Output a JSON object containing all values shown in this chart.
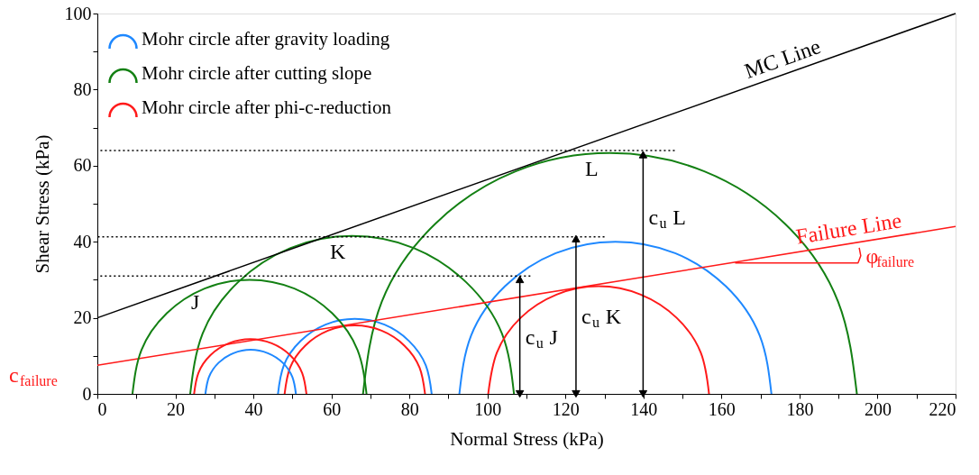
{
  "chart_data": {
    "type": "line",
    "xlabel": "Normal Stress (kPa)",
    "ylabel": "Shear Stress (kPa)",
    "xlim": [
      0,
      220
    ],
    "ylim": [
      0,
      100
    ],
    "xticks": [
      0,
      {
        "value": 10,
        "label": null
      },
      20,
      {
        "value": 30,
        "label": null
      },
      40,
      {
        "value": 50,
        "label": null
      },
      60,
      {
        "value": 70,
        "label": null
      },
      80,
      {
        "value": 90,
        "label": null
      },
      100,
      {
        "value": 110,
        "label": null
      },
      120,
      {
        "value": 130,
        "label": null
      },
      140,
      {
        "value": 150,
        "label": null
      },
      160,
      {
        "value": 170,
        "label": null
      },
      180,
      {
        "value": 190,
        "label": null
      },
      200,
      {
        "value": 210,
        "label": null
      },
      220
    ],
    "yticks": [
      0,
      {
        "value": 10,
        "label": null
      },
      20,
      {
        "value": 30,
        "label": null
      },
      40,
      {
        "value": 50,
        "label": null
      },
      60,
      {
        "value": 70,
        "label": null
      },
      80,
      {
        "value": 90,
        "label": null
      },
      100
    ],
    "grid": false,
    "legend": "top left",
    "series": [
      {
        "name": "Mohr circle after gravity loading",
        "color": "#1e88ff",
        "x": [
          27.7,
          28.6,
          31.1,
          34.9,
          39.3,
          43.7,
          47.5,
          50.0,
          50.9
        ],
        "values": [
          0,
          4.4,
          8.2,
          10.7,
          11.6,
          10.7,
          8.2,
          4.4,
          0
        ]
      },
      {
        "color": "#1e88ff",
        "x": [
          46.3,
          47.8,
          52.1,
          58.5,
          66,
          73.6,
          79.9,
          84.2,
          85.7
        ],
        "values": [
          0,
          7.5,
          13.9,
          18.2,
          19.7,
          18.2,
          13.9,
          7.5,
          0
        ]
      },
      {
        "color": "#1e88ff",
        "x": [
          92.8,
          95.8,
          104.5,
          117.5,
          132.8,
          148.1,
          161.1,
          169.8,
          172.8
        ],
        "values": [
          0,
          15.3,
          28.3,
          37,
          40,
          37,
          28.3,
          15.3,
          0
        ]
      },
      {
        "name": "Mohr circle after cutting slope",
        "color": "#138013",
        "x": [
          9,
          11.3,
          17.8,
          27.5,
          39,
          50.5,
          60.2,
          66.7,
          69
        ],
        "values": [
          0,
          11.5,
          21.2,
          27.7,
          30,
          27.7,
          21.2,
          11.5,
          0
        ]
      },
      {
        "color": "#138013",
        "x": [
          23.8,
          27,
          36,
          49.4,
          65.3,
          81.2,
          94.6,
          103.7,
          106.8
        ],
        "values": [
          0,
          15.9,
          29.3,
          38.3,
          41.5,
          38.3,
          29.3,
          15.9,
          0
        ]
      },
      {
        "color": "#138013",
        "x": [
          68.1,
          72.9,
          86.7,
          107.2,
          131.4,
          155.6,
          176.2,
          189.9,
          194.7
        ],
        "values": [
          0,
          24.2,
          44.8,
          58.5,
          63.3,
          58.5,
          44.8,
          24.2,
          0
        ]
      },
      {
        "name": "Mohr circle after phi-c-reduction",
        "color": "#ff1a1a",
        "x": [
          24.8,
          25.9,
          29,
          33.7,
          39.2,
          44.7,
          49.4,
          52.5,
          53.6
        ],
        "values": [
          0,
          5.5,
          10.2,
          13.3,
          14.4,
          13.3,
          10.2,
          5.5,
          0
        ]
      },
      {
        "color": "#ff1a1a",
        "x": [
          48,
          49.4,
          53.3,
          59.1,
          66,
          72.9,
          78.7,
          82.6,
          84
        ],
        "values": [
          0,
          6.9,
          12.7,
          16.6,
          18,
          16.6,
          12.7,
          6.9,
          0
        ]
      },
      {
        "color": "#ff1a1a",
        "x": [
          100.2,
          102.4,
          108.5,
          117.7,
          128.5,
          139.3,
          148.5,
          154.7,
          156.8
        ],
        "values": [
          0,
          10.8,
          20,
          26.1,
          28.3,
          26.1,
          20,
          10.8,
          0
        ]
      },
      {
        "color": "#000000",
        "x": [
          0,
          220
        ],
        "values": [
          20,
          100
        ]
      },
      {
        "color": "#ff1a1a",
        "x": [
          0,
          220
        ],
        "values": [
          7.5,
          44
        ]
      },
      {
        "color": "#ff1a1a",
        "x": [
          163.5,
          195,
          195.7,
          195.3
        ],
        "values": [
          34.4,
          34.4,
          36.3,
          38.4
        ]
      },
      {
        "color": "#000000",
        "line_style": "dotted",
        "x": [
          0,
          148
        ],
        "values": [
          64,
          64
        ]
      },
      {
        "color": "#000000",
        "line_style": "dotted",
        "x": [
          0,
          130
        ],
        "values": [
          41.3,
          41.3
        ]
      },
      {
        "color": "#000000",
        "line_style": "dotted",
        "x": [
          0,
          111
        ],
        "values": [
          31,
          31
        ]
      },
      {
        "color": "#000000",
        "marker": "triangle",
        "x": [
          108.3,
          108.3
        ],
        "values": [
          0,
          30.1
        ]
      },
      {
        "color": "#000000",
        "marker": "triangle",
        "x": [
          122.7,
          122.7
        ],
        "values": [
          0,
          40.8
        ]
      },
      {
        "color": "#000000",
        "marker": "triangle",
        "x": [
          139.9,
          139.9
        ],
        "values": [
          0,
          62.9
        ]
      }
    ],
    "annotations": [
      {
        "text": "MC Line",
        "x": 176.6,
        "y": 84.2
      },
      {
        "text": "Failure Line",
        "x": 196.2,
        "y": 40
      },
      {
        "text": "J",
        "x": 28.9,
        "y": 28.2
      },
      {
        "text": "K",
        "x": 64.5,
        "y": 41.5
      },
      {
        "text": "L",
        "x": 129.9,
        "y": 63.3
      },
      {
        "text": "c$_{u}$ J",
        "x": 108.3,
        "y": 14.7
      },
      {
        "text": "c$_{u}$ K",
        "x": 122.7,
        "y": 20.1
      },
      {
        "text": "c$_{u}$ L",
        "x": 139.9,
        "y": 46.2
      },
      {
        "text": "φ$_{failure}$",
        "x": 195.6,
        "y": 36
      },
      {
        "text": "c$_{failure}$",
        "x": 0,
        "y": 7.5
      }
    ]
  }
}
